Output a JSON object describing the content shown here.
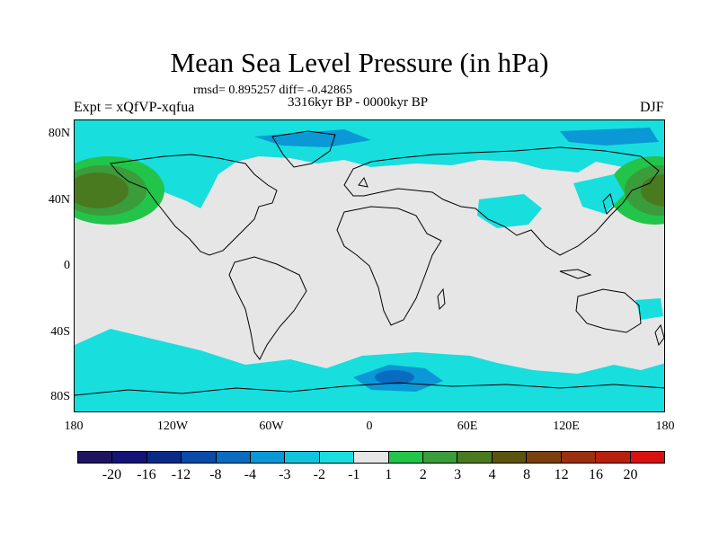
{
  "title": "Mean Sea Level Pressure (in hPa)",
  "stats": "rmsd= 0.895257 diff= -0.42865",
  "period": "3316kyr BP - 0000kyr BP",
  "experiment": "Expt = xQfVP-xqfua",
  "season": "DJF",
  "latitude_labels": [
    "80N",
    "40N",
    "0",
    "40S",
    "80S"
  ],
  "longitude_labels": [
    "180",
    "120W",
    "60W",
    "0",
    "60E",
    "120E",
    "180"
  ],
  "colorbar": {
    "colors": [
      "#1f1460",
      "#141478",
      "#0a2a88",
      "#0a4aa8",
      "#0a6cc0",
      "#0a98d6",
      "#10c4de",
      "#18dede",
      "#e6e6e6",
      "#22c44a",
      "#3a9c3a",
      "#4a7a20",
      "#5a5410",
      "#7a4010",
      "#9a3010",
      "#b82010",
      "#d81010"
    ],
    "labels": [
      "-20",
      "-16",
      "-12",
      "-8",
      "-4",
      "-3",
      "-2",
      "-1",
      "1",
      "2",
      "3",
      "4",
      "8",
      "12",
      "16",
      "20"
    ]
  },
  "map": {
    "background_color": "#e6e6e6",
    "negative_light": "#18dede",
    "negative_medium": "#0a98d6",
    "negative_dark": "#0a6cc0",
    "positive_light": "#22c44a",
    "positive_medium": "#3a9c3a",
    "positive_dark": "#4a7a20",
    "coastline_color": "#000000"
  }
}
